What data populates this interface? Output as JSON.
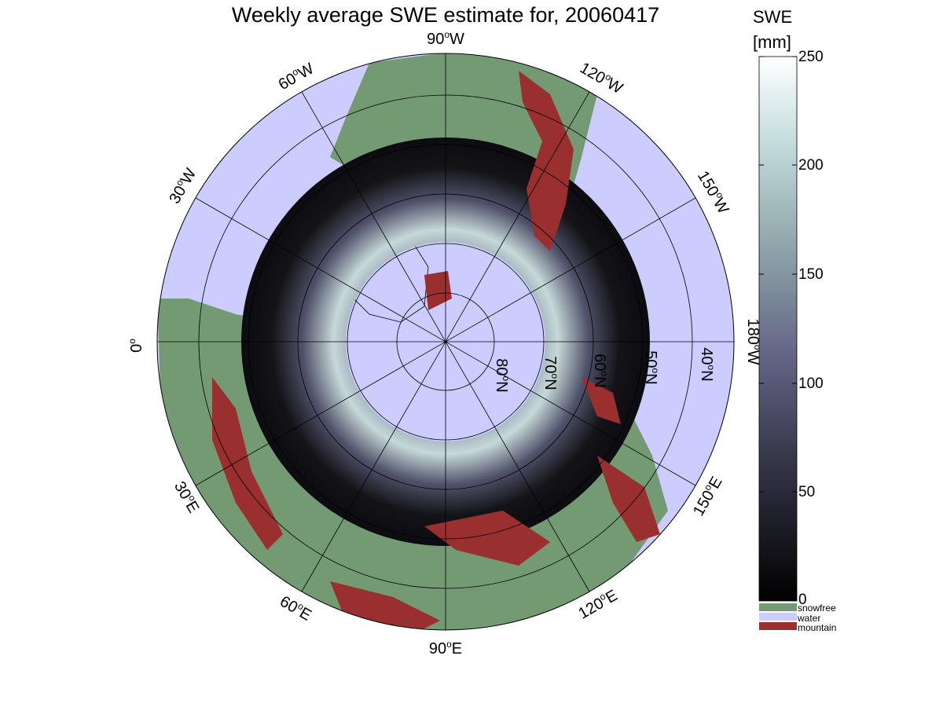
{
  "title": "Weekly average SWE estimate for, 20060417",
  "longitude_labels": [
    {
      "label": "90",
      "suffix": "W"
    },
    {
      "label": "120",
      "suffix": "W"
    },
    {
      "label": "150",
      "suffix": "W"
    },
    {
      "label": "180",
      "suffix": "W"
    },
    {
      "label": "150",
      "suffix": "E"
    },
    {
      "label": "120",
      "suffix": "E"
    },
    {
      "label": "90",
      "suffix": "E"
    },
    {
      "label": "60",
      "suffix": "E"
    },
    {
      "label": "30",
      "suffix": "E"
    },
    {
      "label": "0",
      "suffix": ""
    },
    {
      "label": "30",
      "suffix": "W"
    },
    {
      "label": "60",
      "suffix": "W"
    }
  ],
  "latitude_labels": [
    {
      "label": "80",
      "suffix": "N"
    },
    {
      "label": "70",
      "suffix": "N"
    },
    {
      "label": "60",
      "suffix": "N"
    },
    {
      "label": "50",
      "suffix": "N"
    },
    {
      "label": "40",
      "suffix": "N"
    }
  ],
  "colorbar": {
    "title_line1": "SWE",
    "title_line2": "[mm]",
    "ticks": [
      "250",
      "200",
      "150",
      "100",
      "50",
      "0"
    ],
    "range": [
      0,
      250
    ]
  },
  "legend": [
    {
      "label": "snowfree",
      "color": "#749a74"
    },
    {
      "label": "water",
      "color": "#ccccff"
    },
    {
      "label": "mountain",
      "color": "#9a2f2f"
    }
  ],
  "colors": {
    "water": "#ccccff",
    "snowfree": "#749a74",
    "mountain": "#9a2f2f",
    "swe_low": "#0c0c10",
    "swe_high": "#ffffff"
  }
}
